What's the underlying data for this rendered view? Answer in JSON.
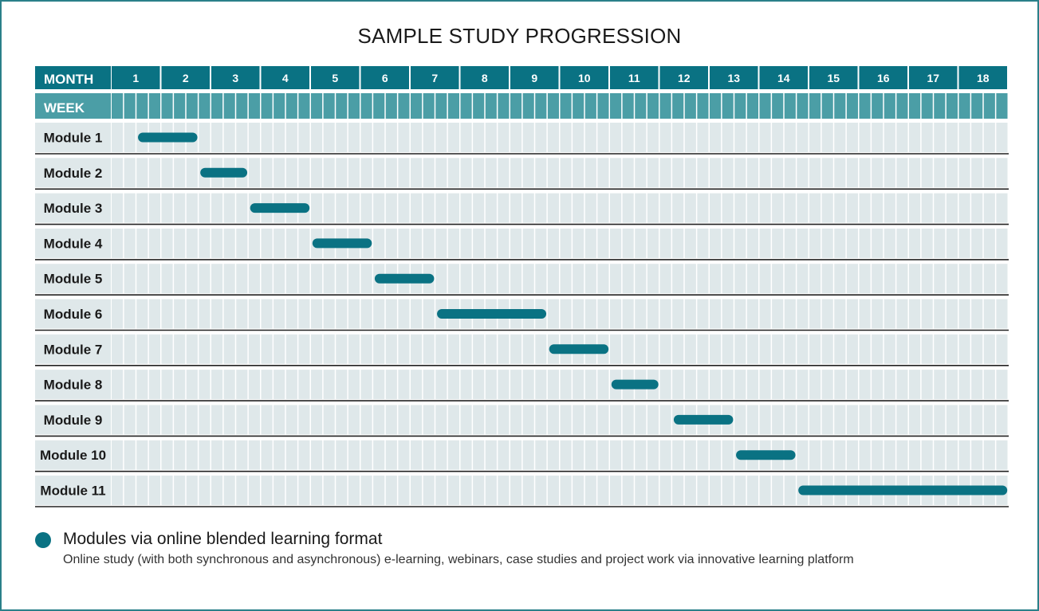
{
  "title": "SAMPLE STUDY PROGRESSION",
  "colors": {
    "teal_dark": "#0a7283",
    "teal_week": "#4b9ea6",
    "grid_bg": "#dfe8ea",
    "frame": "#2a8089"
  },
  "header": {
    "month_label": "MONTH",
    "week_label": "WEEK"
  },
  "chart_data": {
    "type": "gantt",
    "months": [
      "1",
      "2",
      "3",
      "4",
      "5",
      "6",
      "7",
      "8",
      "9",
      "10",
      "11",
      "12",
      "13",
      "14",
      "15",
      "16",
      "17",
      "18"
    ],
    "weeks_per_month": 4,
    "unit": "week",
    "tasks": [
      {
        "label": "Module 1",
        "start_week": 3,
        "end_week": 7
      },
      {
        "label": "Module 2",
        "start_week": 8,
        "end_week": 11
      },
      {
        "label": "Module 3",
        "start_week": 12,
        "end_week": 16
      },
      {
        "label": "Module 4",
        "start_week": 17,
        "end_week": 21
      },
      {
        "label": "Module 5",
        "start_week": 22,
        "end_week": 26
      },
      {
        "label": "Module 6",
        "start_week": 27,
        "end_week": 35
      },
      {
        "label": "Module 7",
        "start_week": 36,
        "end_week": 40
      },
      {
        "label": "Module 8",
        "start_week": 41,
        "end_week": 44
      },
      {
        "label": "Module 9",
        "start_week": 46,
        "end_week": 50
      },
      {
        "label": "Module 10",
        "start_week": 51,
        "end_week": 55
      },
      {
        "label": "Module 11",
        "start_week": 56,
        "end_week": 72
      }
    ]
  },
  "legend": {
    "title": "Modules via online blended learning format",
    "description": "Online study (with both synchronous and asynchronous) e-learning, webinars, case studies and project work via innovative learning platform"
  }
}
